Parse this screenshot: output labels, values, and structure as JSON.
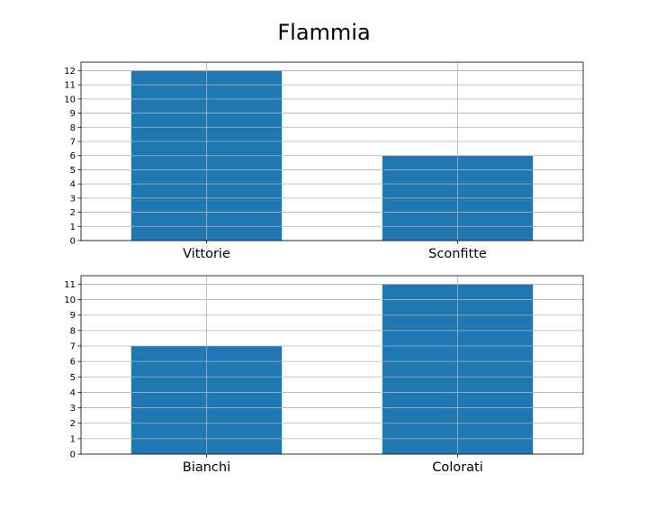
{
  "title": "Flammia",
  "colors": {
    "bar": "#1f77b4",
    "grid": "#b0b0b0",
    "axis": "#000000"
  },
  "chart_data": [
    {
      "type": "bar",
      "categories": [
        "Vittorie",
        "Sconfitte"
      ],
      "values": [
        12,
        6
      ],
      "ylim": [
        0,
        12.6
      ],
      "yticks": [
        0,
        1,
        2,
        3,
        4,
        5,
        6,
        7,
        8,
        9,
        10,
        11,
        12
      ],
      "grid": true
    },
    {
      "type": "bar",
      "categories": [
        "Bianchi",
        "Colorati"
      ],
      "values": [
        7,
        11
      ],
      "ylim": [
        0,
        11.55
      ],
      "yticks": [
        0,
        1,
        2,
        3,
        4,
        5,
        6,
        7,
        8,
        9,
        10,
        11
      ],
      "grid": true
    }
  ]
}
